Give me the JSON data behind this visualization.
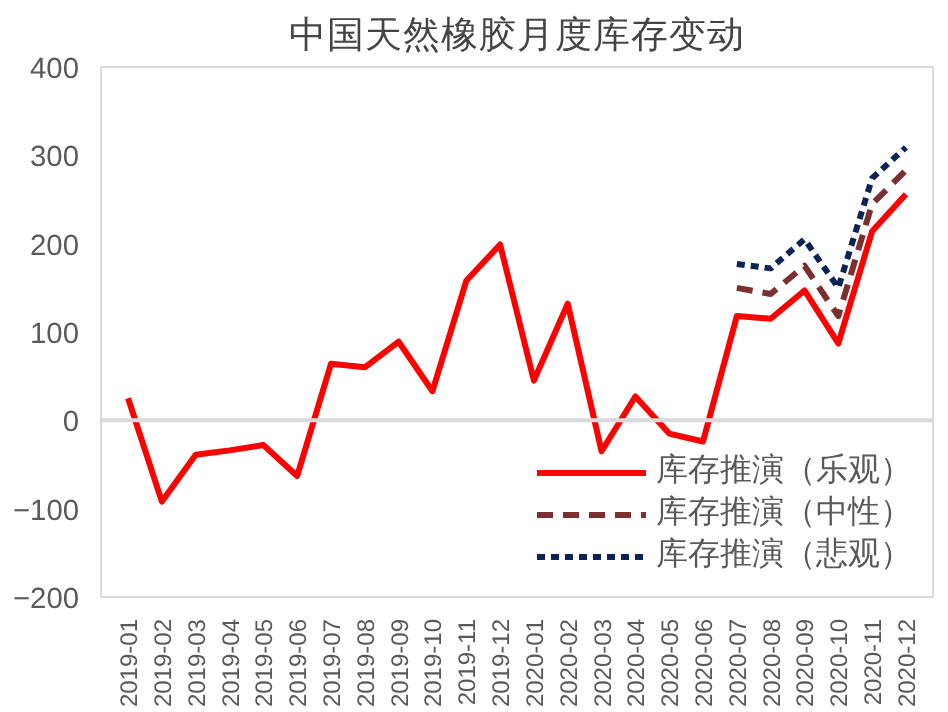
{
  "chart_data": {
    "type": "line",
    "title": "中国天然橡胶月度库存变动",
    "categories": [
      "2019-01",
      "2019-02",
      "2019-03",
      "2019-04",
      "2019-05",
      "2019-06",
      "2019-07",
      "2019-08",
      "2019-09",
      "2019-10",
      "2019-11",
      "2019-12",
      "2020-01",
      "2020-02",
      "2020-03",
      "2020-04",
      "2020-05",
      "2020-06",
      "2020-07",
      "2020-08",
      "2020-09",
      "2020-10",
      "2020-11",
      "2020-12"
    ],
    "series": [
      {
        "name": "库存推演（乐观）",
        "color": "#ff0000",
        "line_style": "solid",
        "values": [
          25,
          -92,
          -39,
          -34,
          -28,
          -63,
          64,
          60,
          89,
          33,
          158,
          199,
          45,
          132,
          -35,
          27,
          -15,
          -24,
          118,
          115,
          147,
          87,
          214,
          256
        ]
      },
      {
        "name": "库存推演（中性）",
        "color": "#7b2f2f",
        "line_style": "dashed",
        "values": [
          null,
          null,
          null,
          null,
          null,
          null,
          null,
          null,
          null,
          null,
          null,
          null,
          null,
          null,
          null,
          null,
          null,
          null,
          150,
          143,
          175,
          118,
          245,
          283
        ]
      },
      {
        "name": "库存推演（悲观）",
        "color": "#0d2356",
        "line_style": "dotted",
        "values": [
          null,
          null,
          null,
          null,
          null,
          null,
          null,
          null,
          null,
          null,
          null,
          null,
          null,
          null,
          null,
          null,
          null,
          null,
          177,
          172,
          205,
          150,
          274,
          309
        ]
      }
    ],
    "ylim": [
      -200,
      400
    ],
    "yticks": [
      -200,
      -100,
      0,
      100,
      200,
      300,
      400
    ],
    "ref_lines": [
      {
        "axis": "y",
        "value": 0,
        "color": "#d9d9d9"
      }
    ],
    "grid": false,
    "legend": "bottom right",
    "marker": "none"
  }
}
